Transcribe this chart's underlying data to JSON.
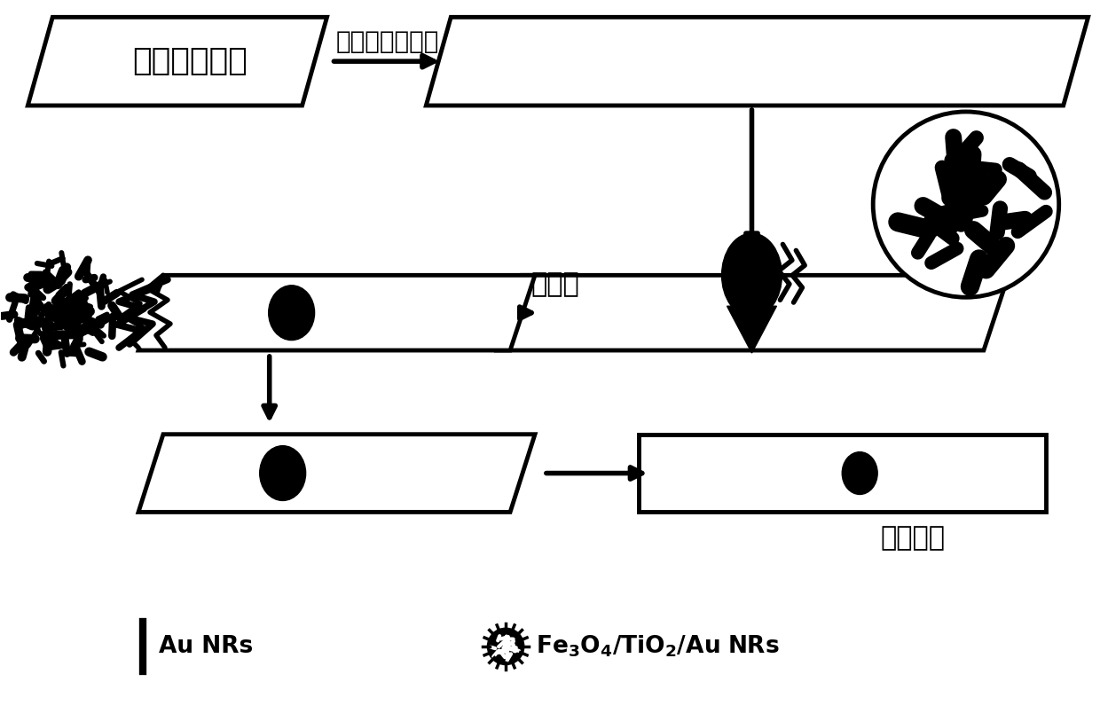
{
  "bg_color": "#ffffff",
  "text_color": "#000000",
  "title_box1_text": "聚四氟乙烯片",
  "arrow_label_top": "旋涂超疏水材料",
  "label_zizu": "自组装",
  "label_cishi": "磁性试纸",
  "legend_line_text": "Au NRs",
  "legend_circle_text": "Fe$_3$O$_4$/TiO$_2$/Au NRs",
  "fig_width": 12.4,
  "fig_height": 8.13
}
